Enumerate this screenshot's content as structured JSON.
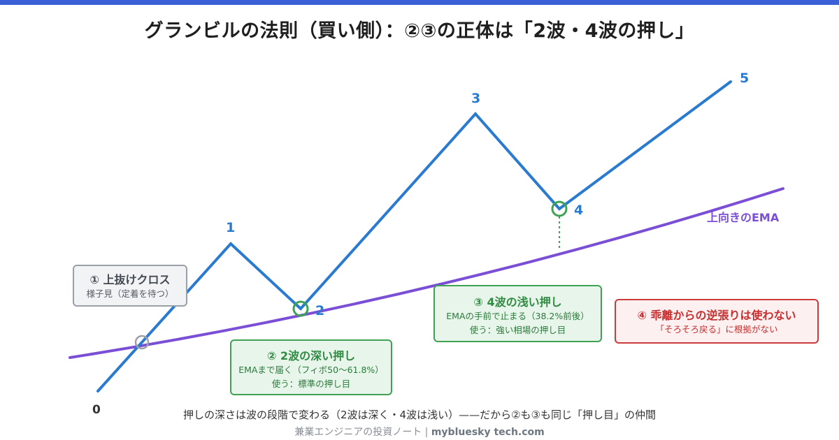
{
  "title": "グランビルの法則（買い側）：②③の正体は「2波・4波の押し」",
  "wave_labels": {
    "w0": "0",
    "w1": "1",
    "w2": "2",
    "w3": "3",
    "w4": "4",
    "w5": "5"
  },
  "ema_label": "上向きのEMA",
  "callouts": {
    "c1": {
      "heading": "① 上抜けクロス",
      "line1": "様子見（定着を待つ）"
    },
    "c2": {
      "heading": "② 2波の深い押し",
      "line1": "EMAまで届く（フィボ50〜61.8%）",
      "line2": "使う：標準の押し目"
    },
    "c3": {
      "heading": "③ 4波の浅い押し",
      "line1": "EMAの手前で止まる（38.2%前後）",
      "line2": "使う：強い相場の押し目"
    },
    "c4": {
      "heading": "④ 乖離からの逆張りは使わない",
      "line1": "「そろそろ戻る」に根拠がない"
    }
  },
  "footer_note": "押しの深さは波の段階で変わる（2波は深く・4波は浅い）——だから②も③も同じ「押し目」の仲間",
  "credit": {
    "site": "兼業エンジニアの投資ノート",
    "separator": "|",
    "domain": "mybluesky tech.com"
  },
  "colors": {
    "price_line": "#2a7bd0",
    "ema_line": "#7a4fd6",
    "green_marker": "#3ea154",
    "gray_marker": "#9aa0a8",
    "warning": "#cc3b3b",
    "header_bar": "#3b5fd6"
  }
}
